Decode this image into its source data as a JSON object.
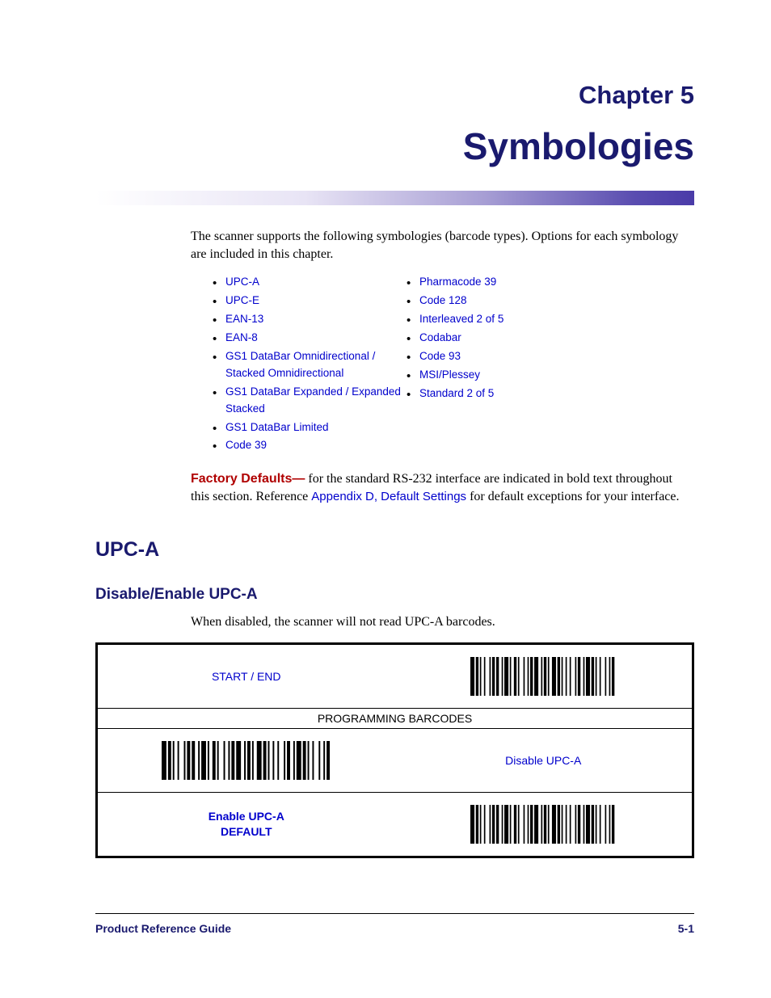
{
  "chapter": {
    "number": "Chapter 5",
    "title": "Symbologies"
  },
  "intro": "The scanner supports the following symbologies (barcode types). Options for each symbology are included in this chapter.",
  "list_left": [
    "UPC-A",
    "UPC-E",
    "EAN-13",
    "EAN-8",
    "GS1 DataBar Omnidirectional / Stacked Omnidirectional",
    "GS1 DataBar Expanded / Expanded Stacked",
    "GS1 DataBar Limited",
    "Code 39"
  ],
  "list_right": [
    "Pharmacode 39",
    "Code 128",
    "Interleaved 2 of 5",
    "Codabar",
    "Code 93",
    "MSI/Plessey",
    "Standard 2 of 5"
  ],
  "factory": {
    "bold": "Factory Defaults—",
    "text1": " for the standard RS-232 interface are indicated in bold text throughout this section. Reference ",
    "link": "Appendix D, Default Settings",
    "text2": " for default exceptions for your interface."
  },
  "section": {
    "h2": "UPC-A",
    "h3": "Disable/Enable UPC-A",
    "desc": "When disabled, the scanner will not read UPC-A barcodes."
  },
  "table": {
    "start_end": "START / END",
    "header": "PROGRAMMING BARCODES",
    "disable": "Disable UPC-A",
    "enable_line1": "Enable UPC-A",
    "enable_line2": "DEFAULT"
  },
  "footer": {
    "left": "Product Reference Guide",
    "right": "5-1"
  },
  "barcode": {
    "bars": [
      3,
      1,
      2,
      1,
      1,
      2,
      1,
      3,
      1,
      1,
      2,
      1,
      2,
      2,
      1,
      1,
      3,
      1,
      1,
      2,
      2,
      1,
      1,
      3,
      1,
      2,
      1,
      1,
      2,
      1,
      3,
      2,
      1,
      1,
      2,
      1,
      1,
      2,
      3,
      1,
      2,
      1,
      1,
      2,
      1,
      2,
      1,
      3,
      1,
      1,
      2,
      2,
      1,
      1,
      3,
      1,
      2,
      1,
      1,
      2,
      1,
      3,
      1,
      2,
      1,
      1,
      2,
      1
    ],
    "width": 180,
    "height": 48
  },
  "colors": {
    "heading": "#1a1a6e",
    "link": "#0000cc",
    "emphasis": "#b00000",
    "text": "#000000",
    "background": "#ffffff"
  },
  "typography": {
    "heading_font": "Segoe UI / Myriad Pro, sans-serif",
    "body_font": "Georgia, serif",
    "ui_font": "Arial, sans-serif",
    "chapter_number_size": 31,
    "chapter_title_size": 46,
    "h2_size": 25,
    "h3_size": 19,
    "body_size": 16,
    "list_size": 13.5
  }
}
